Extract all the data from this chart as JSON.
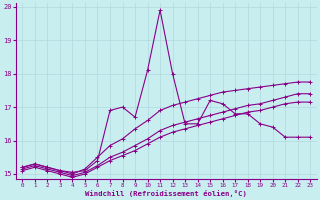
{
  "xlabel": "Windchill (Refroidissement éolien,°C)",
  "bg_color": "#c8eef0",
  "grid_color": "#b0d8dc",
  "line_color": "#880088",
  "xlim": [
    -0.5,
    23.5
  ],
  "ylim": [
    14.85,
    20.1
  ],
  "xticks": [
    0,
    1,
    2,
    3,
    4,
    5,
    6,
    7,
    8,
    9,
    10,
    11,
    12,
    13,
    14,
    15,
    16,
    17,
    18,
    19,
    20,
    21,
    22,
    23
  ],
  "yticks": [
    15,
    16,
    17,
    18,
    19,
    20
  ],
  "line_main": [
    15.2,
    15.3,
    15.2,
    15.1,
    15.05,
    15.1,
    15.4,
    16.9,
    17.0,
    16.7,
    18.1,
    19.9,
    18.0,
    16.5,
    16.5,
    17.2,
    17.1,
    16.8,
    16.8,
    16.5,
    16.4,
    16.1,
    16.1,
    16.1
  ],
  "line2": [
    15.2,
    15.3,
    15.2,
    15.1,
    15.0,
    15.15,
    15.5,
    15.85,
    16.05,
    16.35,
    16.6,
    16.9,
    17.05,
    17.15,
    17.25,
    17.35,
    17.45,
    17.5,
    17.55,
    17.6,
    17.65,
    17.7,
    17.75,
    17.75
  ],
  "line3": [
    15.15,
    15.25,
    15.15,
    15.05,
    14.95,
    15.05,
    15.25,
    15.5,
    15.65,
    15.85,
    16.05,
    16.3,
    16.45,
    16.55,
    16.65,
    16.75,
    16.85,
    16.95,
    17.05,
    17.1,
    17.2,
    17.3,
    17.4,
    17.4
  ],
  "line4": [
    15.1,
    15.2,
    15.1,
    15.0,
    14.9,
    15.0,
    15.2,
    15.4,
    15.55,
    15.7,
    15.9,
    16.1,
    16.25,
    16.35,
    16.45,
    16.55,
    16.65,
    16.75,
    16.85,
    16.9,
    17.0,
    17.1,
    17.15,
    17.15
  ]
}
